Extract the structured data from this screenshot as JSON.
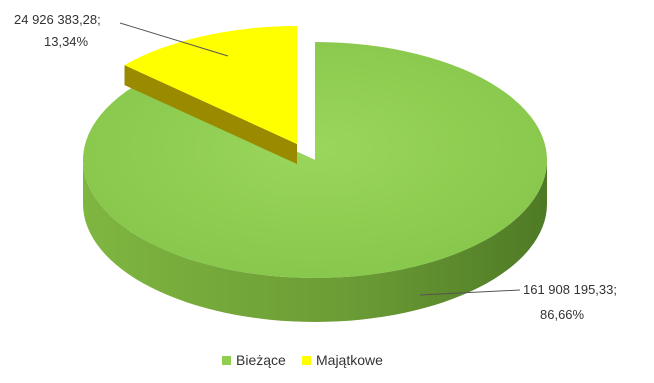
{
  "chart_data": {
    "type": "pie",
    "style": "3d-exploded",
    "title": "",
    "slices": [
      {
        "name": "Bieżące",
        "value": 161908195.33,
        "value_label": "161 908 195,33;",
        "percent_label": "86,66%",
        "color": "#8fce4f",
        "side_color": "#6ea03a"
      },
      {
        "name": "Majątkowe",
        "value": 24926383.28,
        "value_label": "24 926 383,28;",
        "percent_label": "13,34%",
        "color": "#ffff00",
        "side_color": "#9a8a00"
      }
    ],
    "legend": {
      "position": "bottom",
      "entries": [
        "Bieżące",
        "Majątkowe"
      ]
    }
  }
}
